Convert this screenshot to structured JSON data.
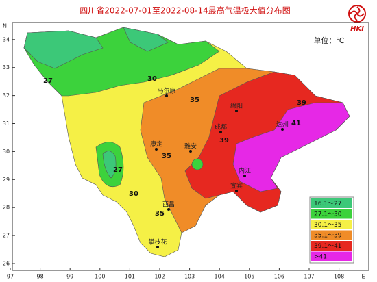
{
  "title": "四川省2022-07-01至2022-08-14最高气温极大值分布图",
  "unit": "单位：℃",
  "logo_text": "HKI",
  "axes": {
    "x_label": "E",
    "y_label": "N",
    "x_ticks": [
      97,
      98,
      99,
      100,
      101,
      102,
      103,
      104,
      105,
      106,
      107,
      108
    ],
    "y_ticks": [
      26,
      27,
      28,
      29,
      30,
      31,
      32,
      33,
      34
    ]
  },
  "legend": [
    {
      "label": "16.1～27",
      "color": "#3cc878"
    },
    {
      "label": "27.1～30",
      "color": "#3cd23c"
    },
    {
      "label": "30.1～35",
      "color": "#f5f046"
    },
    {
      "label": "35.1～39",
      "color": "#f08c28"
    },
    {
      "label": "39.1～41",
      "color": "#e62820"
    },
    {
      "label": ">41",
      "color": "#e628e6"
    }
  ],
  "cities": [
    "马尔康",
    "康定",
    "雅安",
    "成都",
    "西昌",
    "攀枝花",
    "绵阳",
    "达州",
    "内江",
    "宜宾"
  ],
  "contours": [
    "27",
    "30",
    "35",
    "27",
    "35",
    "30",
    "35",
    "39",
    "41",
    "39"
  ]
}
